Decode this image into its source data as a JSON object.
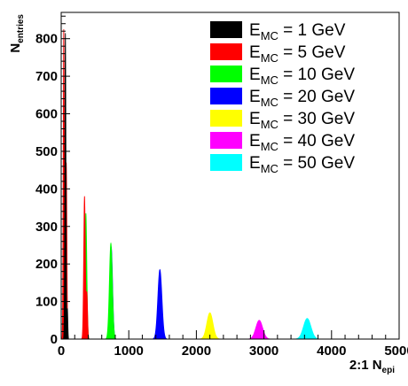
{
  "chart_data": {
    "type": "area",
    "title": "",
    "xlabel": {
      "main": "2:1 N",
      "sub": "epi"
    },
    "ylabel": {
      "main": "N",
      "sub": "entries"
    },
    "xlim": [
      0,
      5000
    ],
    "ylim": [
      0,
      870
    ],
    "x_ticks": [
      0,
      1000,
      2000,
      3000,
      4000,
      5000
    ],
    "y_ticks": [
      0,
      100,
      200,
      300,
      400,
      500,
      600,
      700,
      800
    ],
    "grid": false,
    "legend_position": "top-right",
    "legend_label_format": {
      "prefix": "E",
      "sub": "MC",
      "sep": " = ",
      "unit": " GeV"
    },
    "series": [
      {
        "name": "1 GeV",
        "energy": 1,
        "color": "#000000",
        "peaks": [
          {
            "x": 62,
            "height": 815,
            "sigma": 8
          },
          {
            "x": 92,
            "height": 80,
            "sigma": 6
          }
        ]
      },
      {
        "name": "5 GeV",
        "energy": 5,
        "color": "#ff0000",
        "peaks": [
          {
            "x": 38,
            "height": 825,
            "sigma": 8
          },
          {
            "x": 75,
            "height": 470,
            "sigma": 9
          },
          {
            "x": 345,
            "height": 380,
            "sigma": 12
          },
          {
            "x": 380,
            "height": 120,
            "sigma": 10
          }
        ]
      },
      {
        "name": "10 GeV",
        "energy": 10,
        "color": "#00ff00",
        "peaks": [
          {
            "x": 365,
            "height": 335,
            "sigma": 14
          },
          {
            "x": 735,
            "height": 255,
            "sigma": 22
          }
        ]
      },
      {
        "name": "20 GeV",
        "energy": 20,
        "color": "#0000ff",
        "peaks": [
          {
            "x": 740,
            "height": 245,
            "sigma": 20
          },
          {
            "x": 1460,
            "height": 185,
            "sigma": 30
          }
        ]
      },
      {
        "name": "30 GeV",
        "energy": 30,
        "color": "#ffff00",
        "peaks": [
          {
            "x": 2200,
            "height": 70,
            "sigma": 45
          }
        ]
      },
      {
        "name": "40 GeV",
        "energy": 40,
        "color": "#ff00ff",
        "peaks": [
          {
            "x": 2930,
            "height": 50,
            "sigma": 50
          }
        ]
      },
      {
        "name": "50 GeV",
        "energy": 50,
        "color": "#00ffff",
        "peaks": [
          {
            "x": 3640,
            "height": 55,
            "sigma": 55
          }
        ]
      }
    ]
  }
}
